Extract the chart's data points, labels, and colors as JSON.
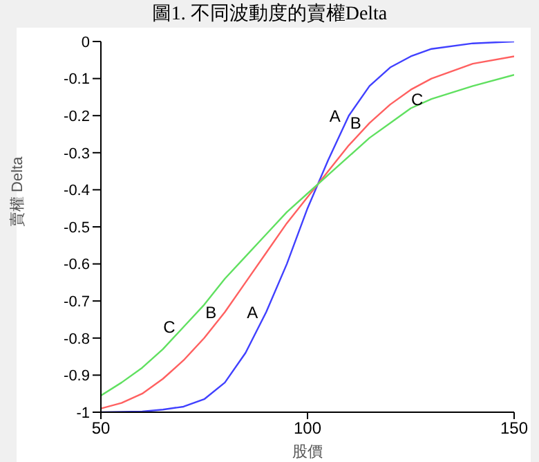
{
  "chart_data": {
    "type": "line",
    "title": "圖1. 不同波動度的賣權Delta",
    "xlabel": "股價",
    "ylabel": "賣權 Delta",
    "x": [
      50,
      55,
      60,
      65,
      70,
      75,
      80,
      85,
      90,
      95,
      100,
      105,
      110,
      115,
      120,
      125,
      130,
      140,
      150
    ],
    "xlim": [
      50,
      150
    ],
    "xticks": [
      50,
      100,
      150
    ],
    "ylim": [
      -1,
      0
    ],
    "yticks": [
      -1,
      -0.9,
      -0.8,
      -0.7,
      -0.6,
      -0.5,
      -0.4,
      -0.3,
      -0.2,
      -0.1,
      0
    ],
    "series": [
      {
        "color": "#4040ff",
        "values": [
          -1,
          -0.999,
          -0.998,
          -0.993,
          -0.985,
          -0.965,
          -0.92,
          -0.84,
          -0.73,
          -0.6,
          -0.45,
          -0.32,
          -0.2,
          -0.12,
          -0.07,
          -0.04,
          -0.02,
          -0.005,
          0
        ]
      },
      {
        "color": "#ff6060",
        "values": [
          -0.99,
          -0.975,
          -0.95,
          -0.91,
          -0.86,
          -0.8,
          -0.73,
          -0.65,
          -0.57,
          -0.49,
          -0.42,
          -0.35,
          -0.28,
          -0.22,
          -0.17,
          -0.13,
          -0.1,
          -0.06,
          -0.04
        ]
      },
      {
        "color": "#60e060",
        "values": [
          -0.955,
          -0.92,
          -0.88,
          -0.83,
          -0.77,
          -0.71,
          -0.64,
          -0.58,
          -0.52,
          -0.46,
          -0.41,
          -0.36,
          -0.31,
          -0.26,
          -0.22,
          -0.18,
          -0.155,
          -0.12,
          -0.09
        ]
      }
    ],
    "annotations": [
      {
        "text": "A",
        "x": 110,
        "y": -0.2
      },
      {
        "text": "B",
        "x": 115,
        "y": -0.22
      },
      {
        "text": "C",
        "x": 130,
        "y": -0.155
      },
      {
        "text": "C",
        "x": 70,
        "y": -0.77
      },
      {
        "text": "B",
        "x": 80,
        "y": -0.73
      },
      {
        "text": "A",
        "x": 90,
        "y": -0.73
      }
    ],
    "grid": false
  }
}
